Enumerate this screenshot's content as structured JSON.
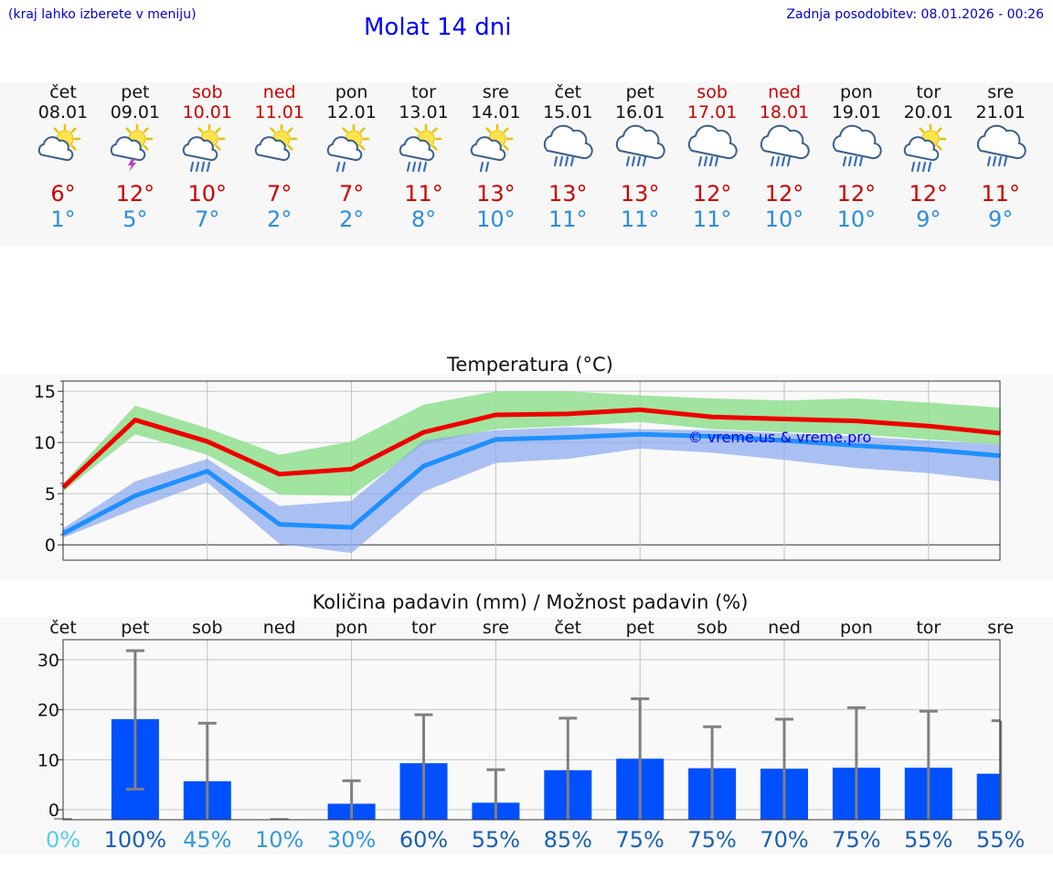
{
  "header": {
    "hint": "(kraj lahko izberete v meniju)",
    "title": "Molat 14 dni",
    "updated": "Zadnja posodobitev: 08.01.2026 - 00:26"
  },
  "days": [
    {
      "name": "čet",
      "date": "08.01",
      "tmax": "6°",
      "tmin": "1°",
      "icon": "sun-cloud-icon",
      "weekend": false
    },
    {
      "name": "pet",
      "date": "09.01",
      "tmax": "12°",
      "tmin": "5°",
      "icon": "sun-cloud-thunder-icon",
      "weekend": false
    },
    {
      "name": "sob",
      "date": "10.01",
      "tmax": "10°",
      "tmin": "7°",
      "icon": "sun-cloud-rain-icon",
      "weekend": true
    },
    {
      "name": "ned",
      "date": "11.01",
      "tmax": "7°",
      "tmin": "2°",
      "icon": "sun-cloud-icon",
      "weekend": true
    },
    {
      "name": "pon",
      "date": "12.01",
      "tmax": "7°",
      "tmin": "2°",
      "icon": "sun-cloud-light-rain-icon",
      "weekend": false
    },
    {
      "name": "tor",
      "date": "13.01",
      "tmax": "11°",
      "tmin": "8°",
      "icon": "sun-cloud-rain-icon",
      "weekend": false
    },
    {
      "name": "sre",
      "date": "14.01",
      "tmax": "13°",
      "tmin": "10°",
      "icon": "sun-cloud-light-rain-icon",
      "weekend": false
    },
    {
      "name": "čet",
      "date": "15.01",
      "tmax": "13°",
      "tmin": "11°",
      "icon": "cloud-rain-icon",
      "weekend": false
    },
    {
      "name": "pet",
      "date": "16.01",
      "tmax": "13°",
      "tmin": "11°",
      "icon": "cloud-rain-icon",
      "weekend": false
    },
    {
      "name": "sob",
      "date": "17.01",
      "tmax": "12°",
      "tmin": "11°",
      "icon": "cloud-rain-icon",
      "weekend": true
    },
    {
      "name": "ned",
      "date": "18.01",
      "tmax": "12°",
      "tmin": "10°",
      "icon": "cloud-rain-icon",
      "weekend": true
    },
    {
      "name": "pon",
      "date": "19.01",
      "tmax": "12°",
      "tmin": "10°",
      "icon": "cloud-rain-icon",
      "weekend": false
    },
    {
      "name": "tor",
      "date": "20.01",
      "tmax": "12°",
      "tmin": "9°",
      "icon": "sun-cloud-rain-icon",
      "weekend": false
    },
    {
      "name": "sre",
      "date": "21.01",
      "tmax": "11°",
      "tmin": "9°",
      "icon": "cloud-rain-icon",
      "weekend": false
    }
  ],
  "colors": {
    "max_line": "#ee0000",
    "min_line": "#1e90ff",
    "max_band": "#90e090",
    "min_band": "#8aa8f0",
    "bar": "#0050ff",
    "whisker": "#808080",
    "pct_light": "#55ccee",
    "pct_mid": "#3399dd",
    "pct_dark": "#1a5fb4"
  },
  "chart_data": [
    {
      "type": "line",
      "title": "Temperatura (°C)",
      "watermark": "© vreme.us & vreme.pro",
      "ylim": [
        -1.5,
        16
      ],
      "yticks": [
        0,
        5,
        10,
        15
      ],
      "x": [
        0,
        1,
        2,
        3,
        4,
        5,
        6,
        7,
        8,
        9,
        10,
        11,
        12,
        13
      ],
      "series": [
        {
          "name": "max",
          "values": [
            5.6,
            12.2,
            10.1,
            6.9,
            7.4,
            11.0,
            12.7,
            12.8,
            13.2,
            12.5,
            12.3,
            12.1,
            11.6,
            10.9
          ],
          "band_low": [
            5.2,
            10.8,
            8.8,
            4.9,
            4.8,
            9.8,
            11.3,
            11.6,
            12.0,
            11.3,
            11.0,
            10.8,
            10.3,
            9.8
          ],
          "band_high": [
            6.0,
            13.6,
            11.4,
            8.8,
            10.1,
            13.7,
            15.0,
            15.0,
            14.6,
            14.3,
            14.1,
            14.3,
            13.9,
            13.4
          ]
        },
        {
          "name": "min",
          "values": [
            1.1,
            4.8,
            7.2,
            2.0,
            1.7,
            7.7,
            10.3,
            10.5,
            10.8,
            10.6,
            10.2,
            9.7,
            9.3,
            8.7
          ],
          "band_low": [
            0.7,
            3.5,
            6.1,
            0.1,
            -0.8,
            5.2,
            8.0,
            8.4,
            9.4,
            9.0,
            8.3,
            7.5,
            7.0,
            6.2
          ],
          "band_high": [
            1.6,
            6.2,
            8.4,
            3.8,
            4.3,
            10.2,
            11.2,
            11.5,
            11.3,
            11.2,
            10.9,
            10.6,
            10.2,
            9.8
          ]
        }
      ]
    },
    {
      "type": "bar",
      "title": "Količina padavin (mm) / Možnost padavin (%)",
      "categories": [
        "čet",
        "pet",
        "sob",
        "ned",
        "pon",
        "tor",
        "sre",
        "čet",
        "pet",
        "sob",
        "ned",
        "pon",
        "tor",
        "sre"
      ],
      "values": [
        0,
        18.1,
        5.7,
        0,
        1.2,
        9.3,
        1.4,
        7.9,
        10.2,
        8.3,
        8.2,
        8.4,
        8.4,
        7.2
      ],
      "error_high": [
        0,
        31.8,
        17.3,
        0.1,
        5.8,
        19.0,
        8.0,
        18.3,
        22.2,
        16.6,
        18.1,
        20.4,
        19.7,
        17.8
      ],
      "error_low": [
        0,
        4.1,
        0,
        0,
        0,
        0,
        0,
        0,
        0,
        0,
        0,
        0,
        0,
        0
      ],
      "chance": [
        "0%",
        "100%",
        "45%",
        "10%",
        "30%",
        "60%",
        "55%",
        "85%",
        "75%",
        "75%",
        "70%",
        "75%",
        "55%",
        "55%"
      ],
      "chance_values": [
        0,
        100,
        45,
        10,
        30,
        60,
        55,
        85,
        75,
        75,
        70,
        75,
        55,
        55
      ],
      "ylim": [
        -2,
        34
      ],
      "yticks": [
        0,
        10,
        20,
        30
      ]
    }
  ]
}
